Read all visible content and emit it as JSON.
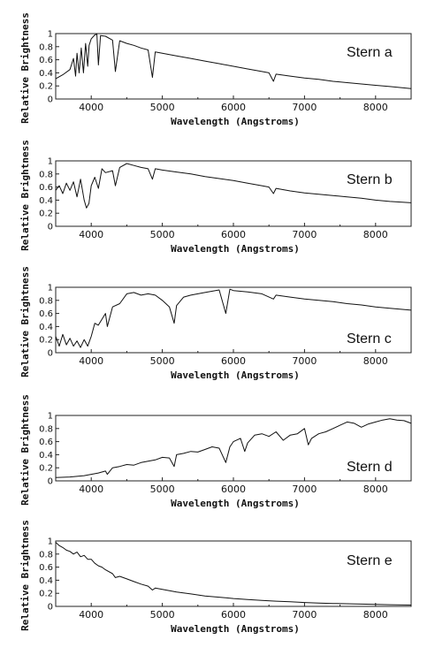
{
  "chart_data": [
    {
      "type": "line",
      "label": "Stern a",
      "xlabel": "Wavelength (Angstroms)",
      "ylabel": "Relative Brightness",
      "xlim": [
        3500,
        8500
      ],
      "ylim": [
        0,
        1
      ],
      "xticks": [
        4000,
        5000,
        6000,
        7000,
        8000
      ],
      "yticks": [
        0,
        0.2,
        0.4,
        0.6,
        0.8,
        1
      ],
      "ytick_labels": [
        "0",
        "0.2",
        "0.4",
        "0.6",
        "0.8",
        "1"
      ],
      "x": [
        3500,
        3600,
        3700,
        3750,
        3780,
        3800,
        3830,
        3860,
        3890,
        3920,
        3950,
        3970,
        4000,
        4050,
        4080,
        4101,
        4130,
        4200,
        4300,
        4340,
        4400,
        4500,
        4600,
        4700,
        4800,
        4861,
        4900,
        5000,
        5200,
        5400,
        5600,
        5800,
        6000,
        6200,
        6400,
        6500,
        6563,
        6600,
        6800,
        7000,
        7200,
        7400,
        7600,
        7800,
        8000,
        8200,
        8500
      ],
      "y": [
        0.31,
        0.37,
        0.45,
        0.62,
        0.35,
        0.7,
        0.4,
        0.78,
        0.4,
        0.85,
        0.5,
        0.82,
        0.92,
        0.98,
        0.99,
        0.52,
        0.97,
        0.96,
        0.9,
        0.42,
        0.89,
        0.85,
        0.82,
        0.78,
        0.75,
        0.33,
        0.72,
        0.7,
        0.66,
        0.62,
        0.58,
        0.54,
        0.5,
        0.46,
        0.42,
        0.4,
        0.27,
        0.38,
        0.35,
        0.32,
        0.3,
        0.27,
        0.25,
        0.23,
        0.21,
        0.19,
        0.16
      ]
    },
    {
      "type": "line",
      "label": "Stern b",
      "xlabel": "Wavelength (Angstroms)",
      "ylabel": "Relative Brightness",
      "xlim": [
        3500,
        8500
      ],
      "ylim": [
        0,
        1
      ],
      "xticks": [
        4000,
        5000,
        6000,
        7000,
        8000
      ],
      "yticks": [
        0,
        0.2,
        0.4,
        0.6,
        0.8,
        1
      ],
      "ytick_labels": [
        "0",
        "0.2",
        "0.4",
        "0.6",
        "0.8",
        "1"
      ],
      "x": [
        3500,
        3550,
        3600,
        3650,
        3700,
        3750,
        3800,
        3850,
        3900,
        3933,
        3968,
        4000,
        4050,
        4101,
        4150,
        4200,
        4300,
        4340,
        4400,
        4500,
        4600,
        4700,
        4800,
        4861,
        4900,
        5000,
        5200,
        5400,
        5600,
        5800,
        6000,
        6200,
        6400,
        6500,
        6563,
        6600,
        6800,
        7000,
        7200,
        7400,
        7600,
        7800,
        8000,
        8200,
        8500
      ],
      "y": [
        0.55,
        0.62,
        0.5,
        0.66,
        0.55,
        0.68,
        0.45,
        0.72,
        0.4,
        0.28,
        0.35,
        0.62,
        0.75,
        0.58,
        0.88,
        0.82,
        0.85,
        0.62,
        0.9,
        0.96,
        0.93,
        0.9,
        0.88,
        0.72,
        0.88,
        0.86,
        0.83,
        0.8,
        0.76,
        0.73,
        0.7,
        0.66,
        0.62,
        0.6,
        0.5,
        0.58,
        0.54,
        0.51,
        0.49,
        0.47,
        0.45,
        0.43,
        0.4,
        0.38,
        0.36
      ]
    },
    {
      "type": "line",
      "label": "Stern c",
      "xlabel": "Wavelength (Angstroms)",
      "ylabel": "Relative Brightness",
      "xlim": [
        3500,
        8500
      ],
      "ylim": [
        0,
        1
      ],
      "xticks": [
        4000,
        5000,
        6000,
        7000,
        8000
      ],
      "yticks": [
        0,
        0.2,
        0.4,
        0.6,
        0.8,
        1
      ],
      "ytick_labels": [
        "0",
        "0.2",
        "0.4",
        "0.6",
        "0.8",
        "1"
      ],
      "x": [
        3500,
        3550,
        3600,
        3650,
        3700,
        3750,
        3800,
        3850,
        3900,
        3950,
        4000,
        4050,
        4100,
        4200,
        4226,
        4300,
        4400,
        4500,
        4600,
        4700,
        4800,
        4900,
        5000,
        5100,
        5167,
        5200,
        5300,
        5400,
        5600,
        5800,
        5893,
        5950,
        6000,
        6200,
        6400,
        6563,
        6600,
        6800,
        7000,
        7200,
        7400,
        7600,
        7800,
        8000,
        8200,
        8500
      ],
      "y": [
        0.25,
        0.1,
        0.28,
        0.12,
        0.22,
        0.1,
        0.18,
        0.08,
        0.2,
        0.1,
        0.25,
        0.45,
        0.42,
        0.6,
        0.4,
        0.7,
        0.75,
        0.9,
        0.92,
        0.88,
        0.9,
        0.88,
        0.8,
        0.7,
        0.45,
        0.72,
        0.85,
        0.88,
        0.92,
        0.96,
        0.6,
        0.97,
        0.95,
        0.93,
        0.9,
        0.82,
        0.88,
        0.85,
        0.82,
        0.8,
        0.78,
        0.75,
        0.73,
        0.7,
        0.68,
        0.65
      ]
    },
    {
      "type": "line",
      "label": "Stern d",
      "xlabel": "Wavelength (Angstroms)",
      "ylabel": "Relative Brightness",
      "xlim": [
        3500,
        8500
      ],
      "ylim": [
        0,
        1
      ],
      "xticks": [
        4000,
        5000,
        6000,
        7000,
        8000
      ],
      "yticks": [
        0,
        0.2,
        0.4,
        0.6,
        0.8,
        1
      ],
      "ytick_labels": [
        "0",
        "0.2",
        "0.4",
        "0.6",
        "0.8",
        "1"
      ],
      "x": [
        3500,
        3700,
        3900,
        4100,
        4200,
        4226,
        4300,
        4400,
        4500,
        4600,
        4700,
        4800,
        4900,
        5000,
        5100,
        5167,
        5200,
        5300,
        5400,
        5500,
        5600,
        5700,
        5800,
        5893,
        5950,
        6000,
        6100,
        6159,
        6200,
        6300,
        6400,
        6500,
        6600,
        6700,
        6800,
        6900,
        7000,
        7054,
        7100,
        7200,
        7300,
        7400,
        7500,
        7600,
        7700,
        7800,
        7900,
        8000,
        8100,
        8200,
        8300,
        8400,
        8500
      ],
      "y": [
        0.05,
        0.06,
        0.08,
        0.12,
        0.15,
        0.1,
        0.2,
        0.22,
        0.25,
        0.24,
        0.28,
        0.3,
        0.32,
        0.36,
        0.35,
        0.22,
        0.4,
        0.42,
        0.45,
        0.44,
        0.48,
        0.52,
        0.5,
        0.28,
        0.52,
        0.6,
        0.65,
        0.45,
        0.58,
        0.7,
        0.72,
        0.68,
        0.75,
        0.62,
        0.7,
        0.72,
        0.8,
        0.55,
        0.65,
        0.72,
        0.75,
        0.8,
        0.85,
        0.9,
        0.88,
        0.82,
        0.87,
        0.9,
        0.93,
        0.95,
        0.93,
        0.92,
        0.88
      ]
    },
    {
      "type": "line",
      "label": "Stern e",
      "xlabel": "Wavelength (Angstroms)",
      "ylabel": "Relative Brightness",
      "xlim": [
        3500,
        8500
      ],
      "ylim": [
        0,
        1
      ],
      "xticks": [
        4000,
        5000,
        6000,
        7000,
        8000
      ],
      "yticks": [
        0,
        0.2,
        0.4,
        0.6,
        0.8,
        1
      ],
      "ytick_labels": [
        "0",
        "0.2",
        "0.4",
        "0.6",
        "0.8",
        "1"
      ],
      "x": [
        3500,
        3550,
        3600,
        3650,
        3700,
        3750,
        3800,
        3850,
        3900,
        3950,
        4000,
        4050,
        4101,
        4150,
        4200,
        4300,
        4340,
        4400,
        4500,
        4600,
        4700,
        4800,
        4861,
        4900,
        5000,
        5200,
        5400,
        5600,
        5800,
        6000,
        6200,
        6400,
        6600,
        6800,
        7000,
        7200,
        7400,
        7600,
        7800,
        8000,
        8200,
        8500
      ],
      "y": [
        0.98,
        0.93,
        0.9,
        0.86,
        0.84,
        0.8,
        0.83,
        0.76,
        0.78,
        0.72,
        0.72,
        0.66,
        0.62,
        0.6,
        0.56,
        0.5,
        0.44,
        0.46,
        0.42,
        0.38,
        0.34,
        0.31,
        0.25,
        0.28,
        0.26,
        0.22,
        0.19,
        0.16,
        0.14,
        0.12,
        0.105,
        0.09,
        0.08,
        0.07,
        0.06,
        0.05,
        0.045,
        0.04,
        0.035,
        0.03,
        0.025,
        0.02
      ]
    }
  ]
}
